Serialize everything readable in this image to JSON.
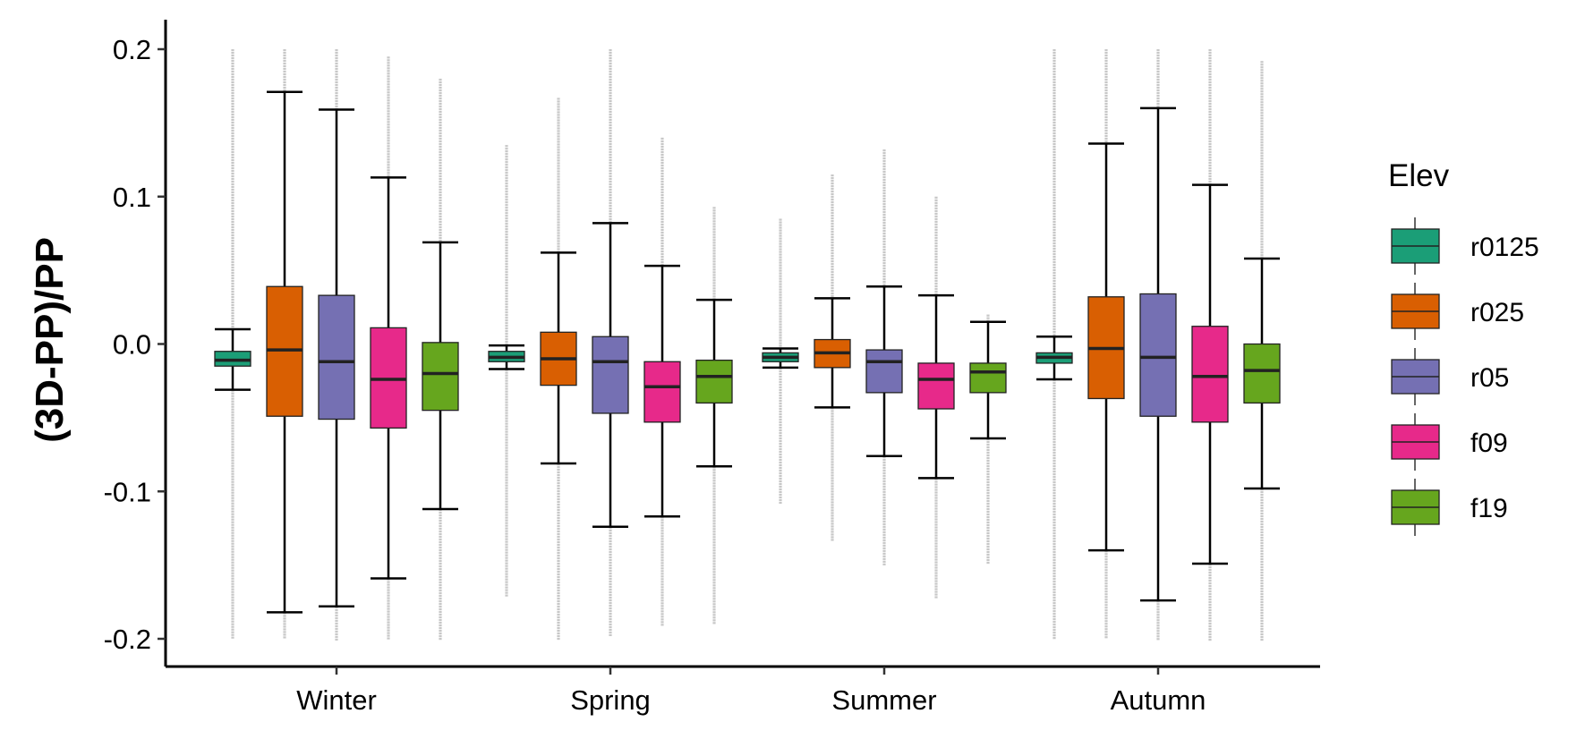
{
  "chart_data": {
    "type": "box",
    "ylabel": "(3D-PP)/PP",
    "xlabel": "",
    "ylim": [
      -0.22,
      0.22
    ],
    "yticks": [
      -0.2,
      -0.1,
      0.0,
      0.1,
      0.2
    ],
    "ytick_labels": [
      "-0.2",
      "-0.1",
      "0.0",
      "0.1",
      "0.2"
    ],
    "categories": [
      "Winter",
      "Spring",
      "Summer",
      "Autumn"
    ],
    "legend": {
      "title": "Elev",
      "placement": "right"
    },
    "grid": false,
    "series": [
      {
        "name": "r0125",
        "color": "#1b9e77",
        "boxes": [
          {
            "whisker_low": -0.031,
            "q1": -0.015,
            "median": -0.011,
            "q3": -0.005,
            "whisker_high": 0.01,
            "out_low": -0.2,
            "out_high": 0.2
          },
          {
            "whisker_low": -0.017,
            "q1": -0.012,
            "median": -0.009,
            "q3": -0.005,
            "whisker_high": -0.001,
            "out_low": -0.17,
            "out_high": 0.135
          },
          {
            "whisker_low": -0.016,
            "q1": -0.012,
            "median": -0.009,
            "q3": -0.006,
            "whisker_high": -0.003,
            "out_low": -0.108,
            "out_high": 0.085
          },
          {
            "whisker_low": -0.024,
            "q1": -0.013,
            "median": -0.009,
            "q3": -0.006,
            "whisker_high": 0.005,
            "out_low": -0.2,
            "out_high": 0.2
          }
        ]
      },
      {
        "name": "r025",
        "color": "#d95f02",
        "boxes": [
          {
            "whisker_low": -0.182,
            "q1": -0.049,
            "median": -0.004,
            "q3": 0.039,
            "whisker_high": 0.171,
            "out_low": -0.2,
            "out_high": 0.2
          },
          {
            "whisker_low": -0.081,
            "q1": -0.028,
            "median": -0.01,
            "q3": 0.008,
            "whisker_high": 0.062,
            "out_low": -0.2,
            "out_high": 0.167
          },
          {
            "whisker_low": -0.043,
            "q1": -0.016,
            "median": -0.006,
            "q3": 0.003,
            "whisker_high": 0.031,
            "out_low": -0.133,
            "out_high": 0.115
          },
          {
            "whisker_low": -0.14,
            "q1": -0.037,
            "median": -0.003,
            "q3": 0.032,
            "whisker_high": 0.136,
            "out_low": -0.2,
            "out_high": 0.2
          }
        ]
      },
      {
        "name": "r05",
        "color": "#7570b3",
        "boxes": [
          {
            "whisker_low": -0.178,
            "q1": -0.051,
            "median": -0.012,
            "q3": 0.033,
            "whisker_high": 0.159,
            "out_low": -0.2,
            "out_high": 0.2
          },
          {
            "whisker_low": -0.124,
            "q1": -0.047,
            "median": -0.012,
            "q3": 0.005,
            "whisker_high": 0.082,
            "out_low": -0.197,
            "out_high": 0.2
          },
          {
            "whisker_low": -0.076,
            "q1": -0.033,
            "median": -0.012,
            "q3": -0.004,
            "whisker_high": 0.039,
            "out_low": -0.15,
            "out_high": 0.132
          },
          {
            "whisker_low": -0.174,
            "q1": -0.049,
            "median": -0.009,
            "q3": 0.034,
            "whisker_high": 0.16,
            "out_low": -0.2,
            "out_high": 0.2
          }
        ]
      },
      {
        "name": "f09",
        "color": "#e7298a",
        "boxes": [
          {
            "whisker_low": -0.159,
            "q1": -0.057,
            "median": -0.024,
            "q3": 0.011,
            "whisker_high": 0.113,
            "out_low": -0.2,
            "out_high": 0.195
          },
          {
            "whisker_low": -0.117,
            "q1": -0.053,
            "median": -0.029,
            "q3": -0.012,
            "whisker_high": 0.053,
            "out_low": -0.19,
            "out_high": 0.14
          },
          {
            "whisker_low": -0.091,
            "q1": -0.044,
            "median": -0.024,
            "q3": -0.013,
            "whisker_high": 0.033,
            "out_low": -0.172,
            "out_high": 0.1
          },
          {
            "whisker_low": -0.149,
            "q1": -0.053,
            "median": -0.022,
            "q3": 0.012,
            "whisker_high": 0.108,
            "out_low": -0.2,
            "out_high": 0.2
          }
        ]
      },
      {
        "name": "f19",
        "color": "#66a61e",
        "boxes": [
          {
            "whisker_low": -0.112,
            "q1": -0.045,
            "median": -0.02,
            "q3": 0.001,
            "whisker_high": 0.069,
            "out_low": -0.2,
            "out_high": 0.18
          },
          {
            "whisker_low": -0.083,
            "q1": -0.04,
            "median": -0.022,
            "q3": -0.011,
            "whisker_high": 0.03,
            "out_low": -0.19,
            "out_high": 0.093
          },
          {
            "whisker_low": -0.064,
            "q1": -0.033,
            "median": -0.019,
            "q3": -0.013,
            "whisker_high": 0.015,
            "out_low": -0.148,
            "out_high": 0.02
          },
          {
            "whisker_low": -0.098,
            "q1": -0.04,
            "median": -0.018,
            "q3": 0.0,
            "whisker_high": 0.058,
            "out_low": -0.2,
            "out_high": 0.192
          }
        ]
      }
    ]
  }
}
